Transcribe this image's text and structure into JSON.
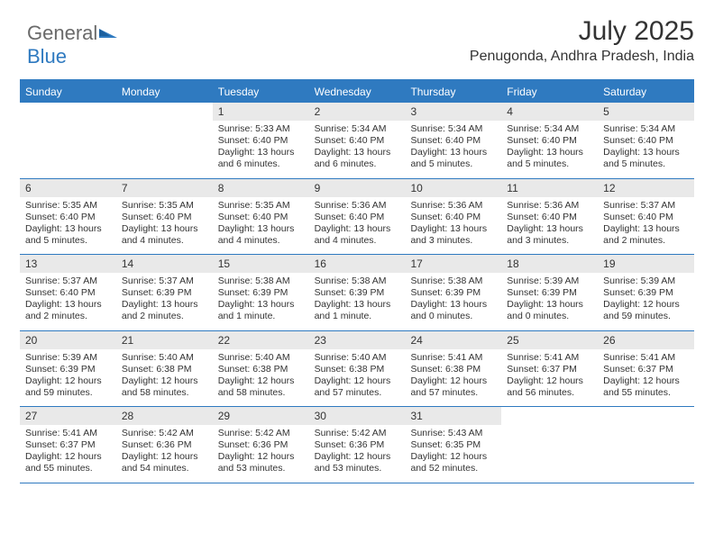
{
  "logo": {
    "word1": "General",
    "word2": "Blue"
  },
  "title": "July 2025",
  "location": "Penugonda, Andhra Pradesh, India",
  "daynames": [
    "Sunday",
    "Monday",
    "Tuesday",
    "Wednesday",
    "Thursday",
    "Friday",
    "Saturday"
  ],
  "colors": {
    "brand": "#2f7ac0",
    "dayheader_bg": "#2f7ac0",
    "dayheader_text": "#ffffff",
    "daynum_bg": "#e9e9e9",
    "text": "#333333",
    "logo_gray": "#6a6a6a",
    "background": "#ffffff"
  },
  "typography": {
    "title_fontsize": 30,
    "location_fontsize": 16,
    "dayname_fontsize": 12,
    "daynum_fontsize": 12,
    "cell_fontsize": 10.5,
    "logo_fontsize": 22
  },
  "layout": {
    "cols": 7,
    "rows": 5,
    "leading_blanks": 2
  },
  "days": [
    {
      "n": "1",
      "sunrise": "5:33 AM",
      "sunset": "6:40 PM",
      "daylight": "13 hours and 6 minutes."
    },
    {
      "n": "2",
      "sunrise": "5:34 AM",
      "sunset": "6:40 PM",
      "daylight": "13 hours and 6 minutes."
    },
    {
      "n": "3",
      "sunrise": "5:34 AM",
      "sunset": "6:40 PM",
      "daylight": "13 hours and 5 minutes."
    },
    {
      "n": "4",
      "sunrise": "5:34 AM",
      "sunset": "6:40 PM",
      "daylight": "13 hours and 5 minutes."
    },
    {
      "n": "5",
      "sunrise": "5:34 AM",
      "sunset": "6:40 PM",
      "daylight": "13 hours and 5 minutes."
    },
    {
      "n": "6",
      "sunrise": "5:35 AM",
      "sunset": "6:40 PM",
      "daylight": "13 hours and 5 minutes."
    },
    {
      "n": "7",
      "sunrise": "5:35 AM",
      "sunset": "6:40 PM",
      "daylight": "13 hours and 4 minutes."
    },
    {
      "n": "8",
      "sunrise": "5:35 AM",
      "sunset": "6:40 PM",
      "daylight": "13 hours and 4 minutes."
    },
    {
      "n": "9",
      "sunrise": "5:36 AM",
      "sunset": "6:40 PM",
      "daylight": "13 hours and 4 minutes."
    },
    {
      "n": "10",
      "sunrise": "5:36 AM",
      "sunset": "6:40 PM",
      "daylight": "13 hours and 3 minutes."
    },
    {
      "n": "11",
      "sunrise": "5:36 AM",
      "sunset": "6:40 PM",
      "daylight": "13 hours and 3 minutes."
    },
    {
      "n": "12",
      "sunrise": "5:37 AM",
      "sunset": "6:40 PM",
      "daylight": "13 hours and 2 minutes."
    },
    {
      "n": "13",
      "sunrise": "5:37 AM",
      "sunset": "6:40 PM",
      "daylight": "13 hours and 2 minutes."
    },
    {
      "n": "14",
      "sunrise": "5:37 AM",
      "sunset": "6:39 PM",
      "daylight": "13 hours and 2 minutes."
    },
    {
      "n": "15",
      "sunrise": "5:38 AM",
      "sunset": "6:39 PM",
      "daylight": "13 hours and 1 minute."
    },
    {
      "n": "16",
      "sunrise": "5:38 AM",
      "sunset": "6:39 PM",
      "daylight": "13 hours and 1 minute."
    },
    {
      "n": "17",
      "sunrise": "5:38 AM",
      "sunset": "6:39 PM",
      "daylight": "13 hours and 0 minutes."
    },
    {
      "n": "18",
      "sunrise": "5:39 AM",
      "sunset": "6:39 PM",
      "daylight": "13 hours and 0 minutes."
    },
    {
      "n": "19",
      "sunrise": "5:39 AM",
      "sunset": "6:39 PM",
      "daylight": "12 hours and 59 minutes."
    },
    {
      "n": "20",
      "sunrise": "5:39 AM",
      "sunset": "6:39 PM",
      "daylight": "12 hours and 59 minutes."
    },
    {
      "n": "21",
      "sunrise": "5:40 AM",
      "sunset": "6:38 PM",
      "daylight": "12 hours and 58 minutes."
    },
    {
      "n": "22",
      "sunrise": "5:40 AM",
      "sunset": "6:38 PM",
      "daylight": "12 hours and 58 minutes."
    },
    {
      "n": "23",
      "sunrise": "5:40 AM",
      "sunset": "6:38 PM",
      "daylight": "12 hours and 57 minutes."
    },
    {
      "n": "24",
      "sunrise": "5:41 AM",
      "sunset": "6:38 PM",
      "daylight": "12 hours and 57 minutes."
    },
    {
      "n": "25",
      "sunrise": "5:41 AM",
      "sunset": "6:37 PM",
      "daylight": "12 hours and 56 minutes."
    },
    {
      "n": "26",
      "sunrise": "5:41 AM",
      "sunset": "6:37 PM",
      "daylight": "12 hours and 55 minutes."
    },
    {
      "n": "27",
      "sunrise": "5:41 AM",
      "sunset": "6:37 PM",
      "daylight": "12 hours and 55 minutes."
    },
    {
      "n": "28",
      "sunrise": "5:42 AM",
      "sunset": "6:36 PM",
      "daylight": "12 hours and 54 minutes."
    },
    {
      "n": "29",
      "sunrise": "5:42 AM",
      "sunset": "6:36 PM",
      "daylight": "12 hours and 53 minutes."
    },
    {
      "n": "30",
      "sunrise": "5:42 AM",
      "sunset": "6:36 PM",
      "daylight": "12 hours and 53 minutes."
    },
    {
      "n": "31",
      "sunrise": "5:43 AM",
      "sunset": "6:35 PM",
      "daylight": "12 hours and 52 minutes."
    }
  ],
  "labels": {
    "sunrise": "Sunrise:",
    "sunset": "Sunset:",
    "daylight": "Daylight:"
  }
}
